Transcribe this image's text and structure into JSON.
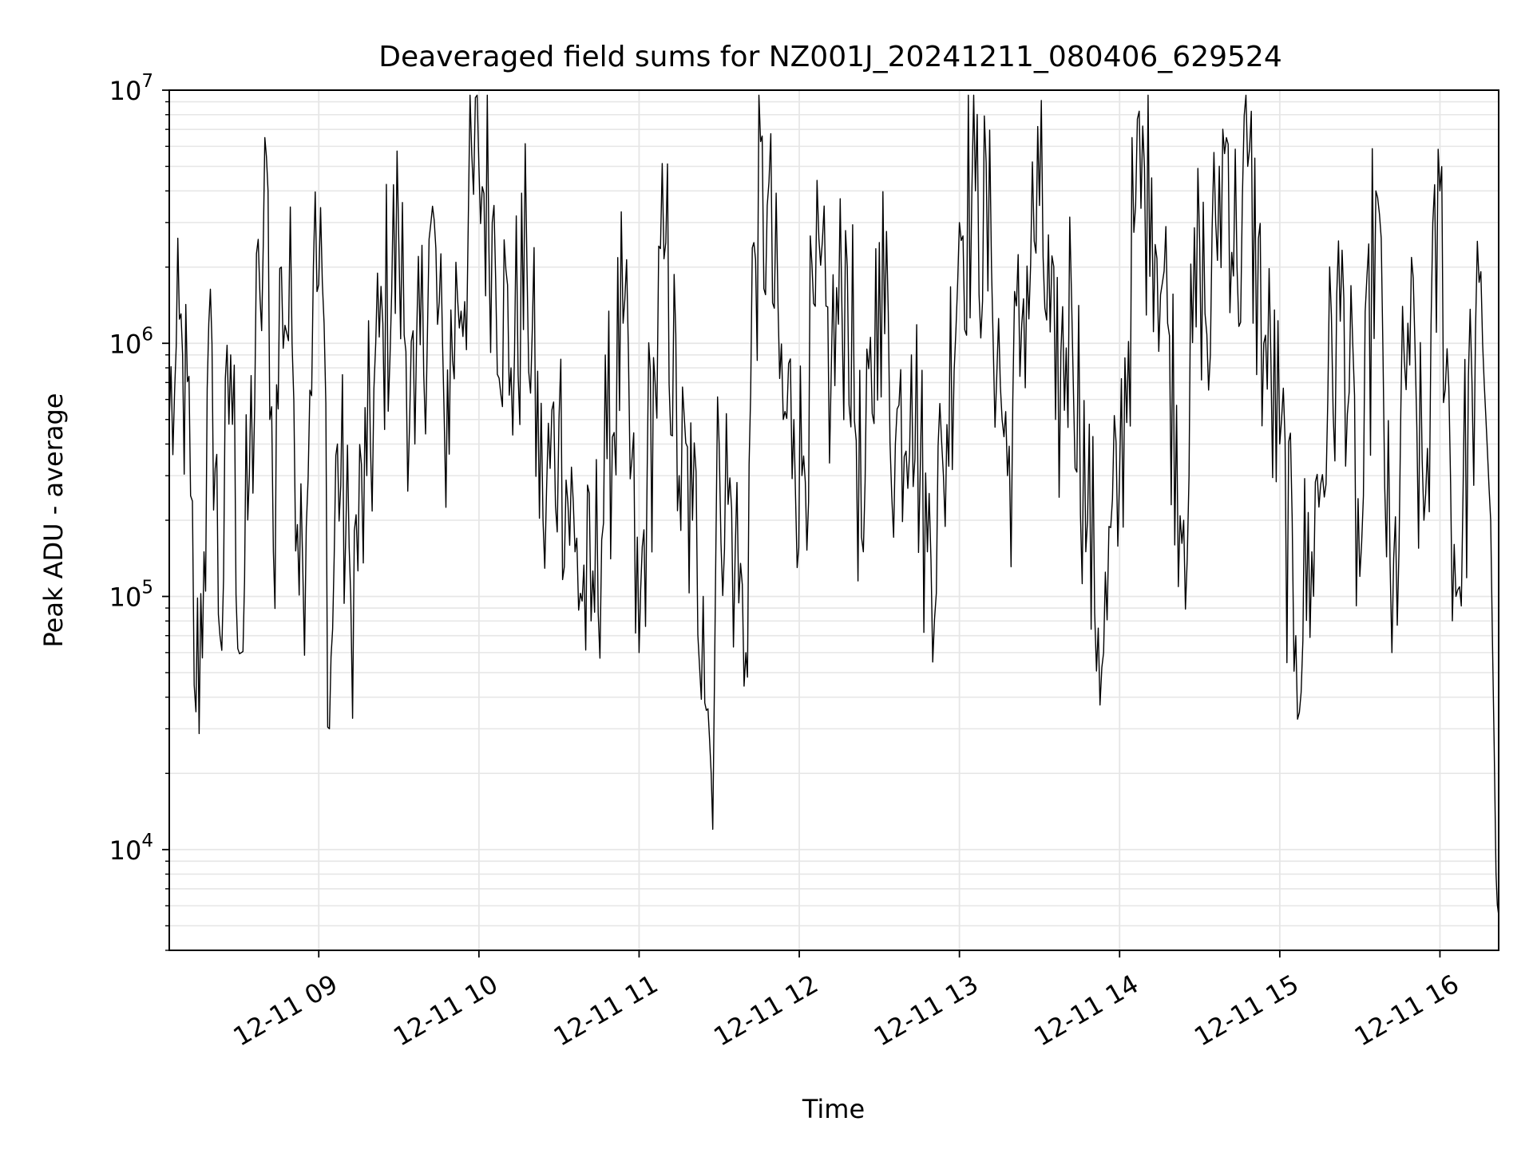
{
  "chart_data": {
    "type": "line",
    "title": "Deaveraged field sums for NZ001J_20241211_080406_629524",
    "xlabel": "Time",
    "ylabel": "Peak ADU - average",
    "yscale": "log",
    "ylim": [
      4000,
      10000000
    ],
    "xlim": [
      "2024-12-11 08:04",
      "2024-12-11 16:22"
    ],
    "grid": true,
    "line_color": "#000000",
    "grid_color": "#e6e6e6",
    "x_ticks": [
      {
        "value": "2024-12-11 09:00",
        "label": "12-11 09"
      },
      {
        "value": "2024-12-11 10:00",
        "label": "12-11 10"
      },
      {
        "value": "2024-12-11 11:00",
        "label": "12-11 11"
      },
      {
        "value": "2024-12-11 12:00",
        "label": "12-11 12"
      },
      {
        "value": "2024-12-11 13:00",
        "label": "12-11 13"
      },
      {
        "value": "2024-12-11 14:00",
        "label": "12-11 14"
      },
      {
        "value": "2024-12-11 15:00",
        "label": "12-11 15"
      },
      {
        "value": "2024-12-11 16:00",
        "label": "12-11 16"
      }
    ],
    "y_ticks": [
      {
        "value": 10000,
        "base": "10",
        "exp": "4"
      },
      {
        "value": 100000,
        "base": "10",
        "exp": "5"
      },
      {
        "value": 1000000,
        "base": "10",
        "exp": "6"
      },
      {
        "value": 10000000,
        "base": "10",
        "exp": "7"
      }
    ],
    "series": [
      {
        "x": [
          "2024-12-11 08:04",
          "2024-12-11 08:06",
          "2024-12-11 08:09",
          "2024-12-11 08:12",
          "2024-12-11 08:14",
          "2024-12-11 08:17",
          "2024-12-11 08:20",
          "2024-12-11 08:23",
          "2024-12-11 08:27",
          "2024-12-11 08:31",
          "2024-12-11 08:34",
          "2024-12-11 08:38",
          "2024-12-11 08:41",
          "2024-12-11 08:43",
          "2024-12-11 08:46",
          "2024-12-11 08:50",
          "2024-12-11 08:54",
          "2024-12-11 08:58",
          "2024-12-11 09:02",
          "2024-12-11 09:04",
          "2024-12-11 09:07",
          "2024-12-11 09:12",
          "2024-12-11 09:18",
          "2024-12-11 09:24",
          "2024-12-11 09:30",
          "2024-12-11 09:36",
          "2024-12-11 09:42",
          "2024-12-11 09:47",
          "2024-12-11 09:52",
          "2024-12-11 10:00",
          "2024-12-11 10:05",
          "2024-12-11 10:12",
          "2024-12-11 10:18",
          "2024-12-11 10:24",
          "2024-12-11 10:30",
          "2024-12-11 10:36",
          "2024-12-11 10:42",
          "2024-12-11 10:48",
          "2024-12-11 10:54",
          "2024-12-11 11:00",
          "2024-12-11 11:03",
          "2024-12-11 11:06",
          "2024-12-11 11:10",
          "2024-12-11 11:15",
          "2024-12-11 11:20",
          "2024-12-11 11:24",
          "2024-12-11 11:27",
          "2024-12-11 11:30",
          "2024-12-11 11:36",
          "2024-12-11 11:40",
          "2024-12-11 11:43",
          "2024-12-11 11:48",
          "2024-12-11 11:54",
          "2024-12-11 11:58",
          "2024-12-11 12:01",
          "2024-12-11 12:06",
          "2024-12-11 12:12",
          "2024-12-11 12:18",
          "2024-12-11 12:24",
          "2024-12-11 12:30",
          "2024-12-11 12:36",
          "2024-12-11 12:42",
          "2024-12-11 12:48",
          "2024-12-11 12:54",
          "2024-12-11 13:00",
          "2024-12-11 13:06",
          "2024-12-11 13:12",
          "2024-12-11 13:18",
          "2024-12-11 13:24",
          "2024-12-11 13:30",
          "2024-12-11 13:36",
          "2024-12-11 13:42",
          "2024-12-11 13:48",
          "2024-12-11 13:54",
          "2024-12-11 14:00",
          "2024-12-11 14:06",
          "2024-12-11 14:12",
          "2024-12-11 14:18",
          "2024-12-11 14:24",
          "2024-12-11 14:30",
          "2024-12-11 14:34",
          "2024-12-11 14:36",
          "2024-12-11 14:40",
          "2024-12-11 14:44",
          "2024-12-11 14:48",
          "2024-12-11 14:54",
          "2024-12-11 15:00",
          "2024-12-11 15:06",
          "2024-12-11 15:12",
          "2024-12-11 15:18",
          "2024-12-11 15:24",
          "2024-12-11 15:30",
          "2024-12-11 15:36",
          "2024-12-11 15:42",
          "2024-12-11 15:48",
          "2024-12-11 15:54",
          "2024-12-11 16:00",
          "2024-12-11 16:06",
          "2024-12-11 16:12",
          "2024-12-11 16:16",
          "2024-12-11 16:19",
          "2024-12-11 16:21",
          "2024-12-11 16:22"
        ],
        "y": [
          500000,
          650000,
          900000,
          250000,
          35000,
          150000,
          1000000,
          70000,
          900000,
          60000,
          300000,
          1500000,
          4000000,
          150000,
          2000000,
          1000000,
          130000,
          2000000,
          1200000,
          30000,
          400000,
          100000,
          300000,
          1200000,
          2500000,
          400000,
          3000000,
          500000,
          1500000,
          5000000,
          3000000,
          800000,
          2000000,
          200000,
          500000,
          150000,
          80000,
          350000,
          1200000,
          60000,
          300000,
          700000,
          2500000,
          300000,
          200000,
          100000,
          20000,
          400000,
          150000,
          60000,
          2500000,
          3500000,
          500000,
          500000,
          300000,
          1400000,
          800000,
          2000000,
          150000,
          2500000,
          400000,
          900000,
          150000,
          300000,
          3000000,
          4000000,
          2000000,
          300000,
          1500000,
          3500000,
          500000,
          1500000,
          200000,
          60000,
          300000,
          3500000,
          4500000,
          1200000,
          200000,
          2500000,
          900000,
          3000000,
          6500000,
          2000000,
          5000000,
          1000000,
          400000,
          70000,
          150000,
          600000,
          1500000,
          120000,
          4000000,
          60000,
          1200000,
          200000,
          4000000,
          100000,
          700000,
          1000000,
          200000,
          8000,
          5500
        ]
      }
    ]
  }
}
